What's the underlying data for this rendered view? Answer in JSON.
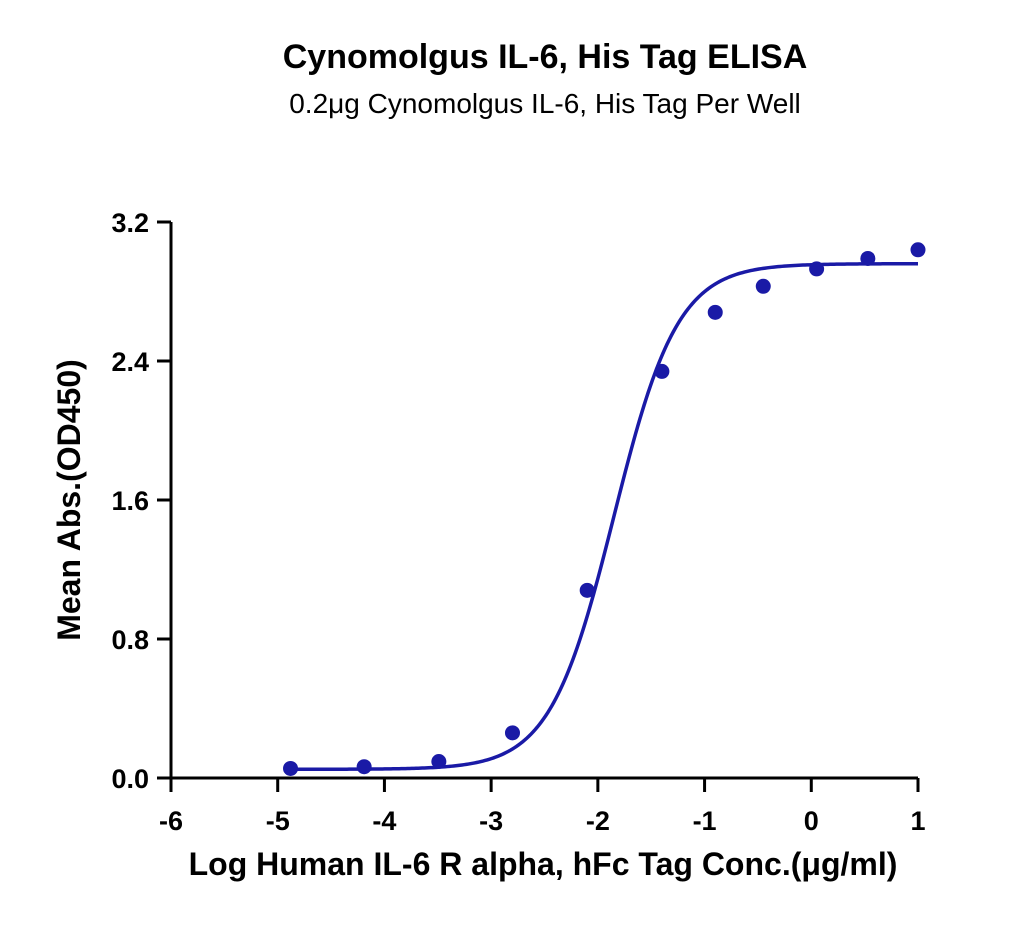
{
  "chart_data": {
    "type": "scatter",
    "title": "Cynomolgus IL-6, His Tag ELISA",
    "subtitle": "0.2μg Cynomolgus IL-6, His Tag Per Well",
    "xlabel": "Log Human IL-6 R alpha, hFc Tag Conc.(μg/ml)",
    "ylabel": "Mean Abs.(OD450)",
    "xlim": [
      -6,
      1
    ],
    "ylim": [
      0,
      3.2
    ],
    "xticks": [
      -6,
      -5,
      -4,
      -3,
      -2,
      -1,
      0,
      1
    ],
    "xtick_labels": [
      "-6",
      "-5",
      "-4",
      "-3",
      "-2",
      "-1",
      "0",
      "1"
    ],
    "yticks": [
      0,
      0.8,
      1.6,
      2.4,
      3.2
    ],
    "ytick_labels": [
      "0.0",
      "0.8",
      "1.6",
      "2.4",
      "3.2"
    ],
    "grid": false,
    "series": [
      {
        "points": [
          {
            "x": -4.88,
            "y": 0.055
          },
          {
            "x": -4.19,
            "y": 0.065
          },
          {
            "x": -3.49,
            "y": 0.095
          },
          {
            "x": -2.8,
            "y": 0.26
          },
          {
            "x": -2.1,
            "y": 1.08
          },
          {
            "x": -1.4,
            "y": 2.34
          },
          {
            "x": -0.9,
            "y": 2.68
          },
          {
            "x": -0.45,
            "y": 2.83
          },
          {
            "x": 0.05,
            "y": 2.93
          },
          {
            "x": 0.53,
            "y": 2.99
          },
          {
            "x": 1.0,
            "y": 3.04
          }
        ],
        "fit": {
          "model": "4PL",
          "bottom": 0.05,
          "top": 2.96,
          "logEC50": -1.85,
          "hill": 1.45
        },
        "color": "#1a1aa6"
      }
    ]
  }
}
